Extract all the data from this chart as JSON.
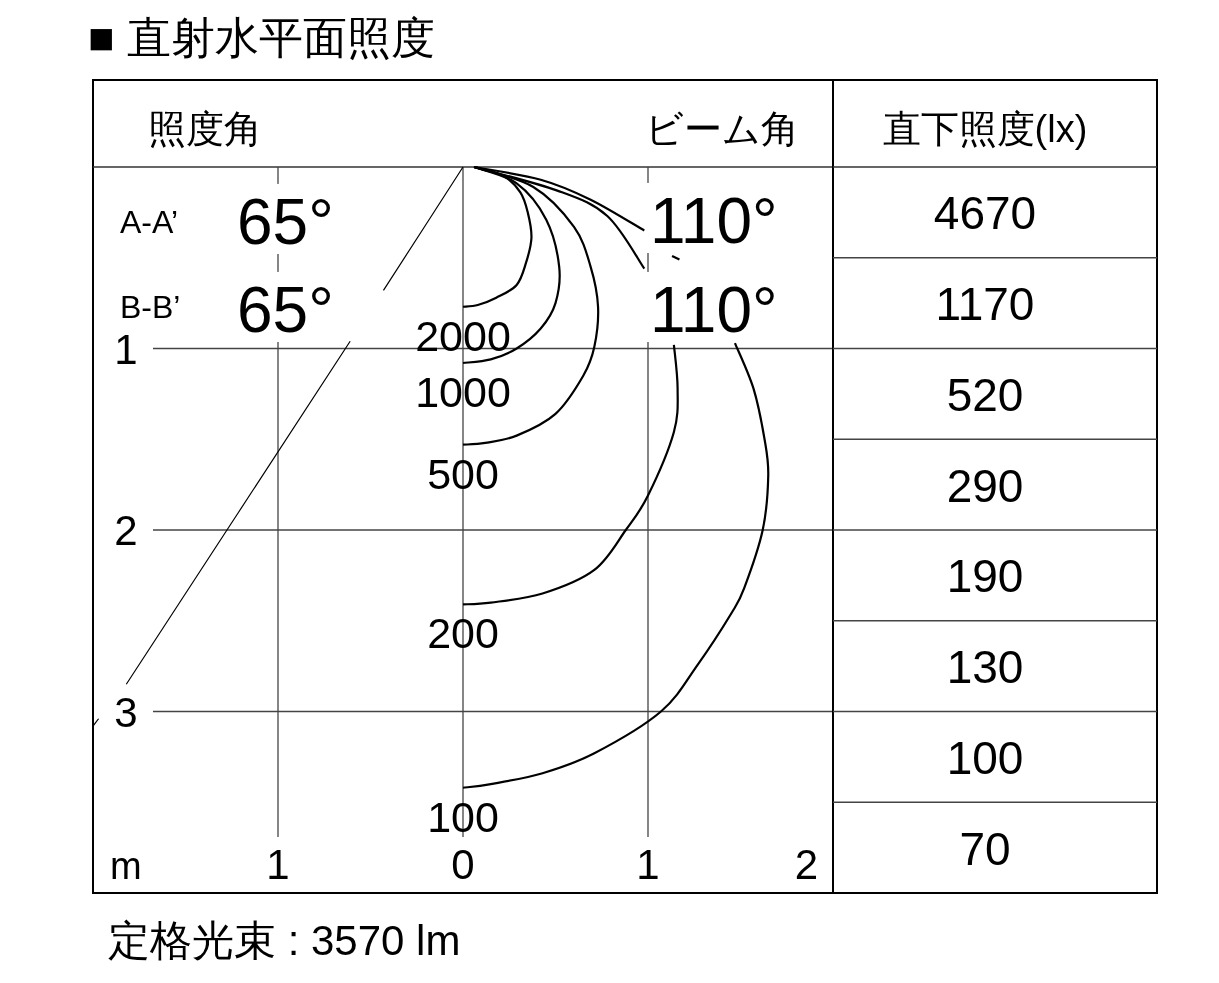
{
  "chart_data": [
    {
      "type": "line",
      "title": "■ 直射水平面照度",
      "xlabel": "m",
      "xlim": [
        -2,
        2
      ],
      "ylim": [
        4,
        0
      ],
      "xticks": [
        {
          "value": -1,
          "label": "1"
        },
        0,
        1,
        2
      ],
      "yticks": [
        1,
        2,
        3
      ],
      "grid": true,
      "series": [
        {
          "name": "2000",
          "type": "line",
          "color": "#000000",
          "x": [
            0.06,
            0.22,
            0.31,
            0.35,
            0.37,
            0.34,
            0.29,
            0.18,
            0.08,
            0
          ],
          "values": [
            0,
            0.05,
            0.14,
            0.25,
            0.39,
            0.53,
            0.65,
            0.72,
            0.76,
            0.77
          ]
        },
        {
          "name": "1000",
          "type": "line",
          "color": "#000000",
          "x": [
            0.06,
            0.29,
            0.45,
            0.52,
            0.5,
            0.42,
            0.29,
            0.15,
            0
          ],
          "values": [
            0,
            0.09,
            0.29,
            0.55,
            0.75,
            0.89,
            1.0,
            1.06,
            1.08
          ]
        },
        {
          "name": "500",
          "type": "line",
          "color": "#000000",
          "x": [
            0.06,
            0.38,
            0.6,
            0.69,
            0.73,
            0.71,
            0.65,
            0.5,
            0.29,
            0.12,
            0
          ],
          "values": [
            0,
            0.11,
            0.33,
            0.55,
            0.77,
            0.99,
            1.15,
            1.36,
            1.48,
            1.52,
            1.53
          ]
        },
        {
          "name": "200",
          "type": "line",
          "color": "#000000",
          "x": [
            0.06,
            0.51,
            0.78,
            0.98,
            null,
            1.14,
            1.16,
            1.14,
            1.0,
            0.88,
            0.71,
            0.43,
            0.15,
            0
          ],
          "values": [
            0,
            0.13,
            0.27,
            0.56,
            null,
            0.98,
            1.22,
            1.46,
            1.81,
            2.0,
            2.22,
            2.35,
            2.4,
            2.41
          ]
        },
        {
          "name": "100",
          "type": "line",
          "color": "#000000",
          "x": [
            0.06,
            0.42,
            0.69,
            0.98,
            null,
            1.13,
            1.17,
            null,
            1.47,
            1.57,
            1.63,
            1.65,
            1.62,
            1.52,
            1.45,
            1.27,
            1.07,
            0.71,
            0.43,
            0.15,
            0
          ],
          "values": [
            0,
            0.07,
            0.18,
            0.35,
            null,
            0.49,
            0.51,
            null,
            0.97,
            1.22,
            1.5,
            1.7,
            2.0,
            2.32,
            2.46,
            2.74,
            3.0,
            3.23,
            3.34,
            3.4,
            3.42
          ]
        },
        {
          "type": "line",
          "color": "#000000",
          "x": [
            0,
            -0.43,
            null,
            -0.61,
            -1.82,
            null,
            -1.97,
            -2.0
          ],
          "values": [
            0,
            0.68,
            null,
            0.96,
            2.85,
            null,
            3.04,
            3.08
          ]
        }
      ],
      "annotations": [
        "照度角",
        "ビーム角",
        "A-A’",
        "65°",
        "110°",
        "B-B’",
        "65°",
        "110°",
        "定格光束 : 3570 lm"
      ]
    },
    {
      "type": "other",
      "title": "直下照度(lx)",
      "annotations": [
        "4670",
        "1170",
        "520",
        "290",
        "190",
        "130",
        "100",
        "70"
      ]
    }
  ]
}
